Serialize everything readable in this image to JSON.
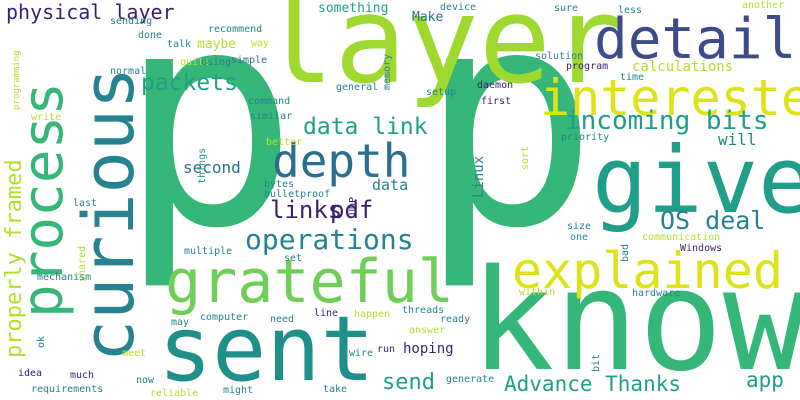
{
  "palette": {
    "navy": "#3b1f6e",
    "blue": "#3e4a89",
    "teal": "#26828e",
    "sea": "#1f9e89",
    "green": "#35b779",
    "lime": "#6ece58",
    "yellowgreen": "#b5de2b",
    "yellow": "#dde318"
  },
  "words": [
    {
      "text": "p"
    },
    {
      "text": "p"
    },
    {
      "text": "layer"
    },
    {
      "text": "know"
    },
    {
      "text": "curious"
    },
    {
      "text": "process"
    },
    {
      "text": "sent"
    },
    {
      "text": "give"
    },
    {
      "text": "detail"
    },
    {
      "text": "interested"
    },
    {
      "text": "grateful"
    },
    {
      "text": "explained"
    },
    {
      "text": "depth"
    },
    {
      "text": "operations"
    },
    {
      "text": "incoming bits"
    },
    {
      "text": "data link"
    },
    {
      "text": "packets"
    },
    {
      "text": "physical layer"
    },
    {
      "text": "properly framed"
    },
    {
      "text": "links"
    },
    {
      "text": "pdf"
    },
    {
      "text": "OS deal"
    },
    {
      "text": "Advance Thanks"
    },
    {
      "text": "send"
    },
    {
      "text": "app"
    },
    {
      "text": "data"
    },
    {
      "text": "second"
    },
    {
      "text": "will"
    },
    {
      "text": "calculations"
    },
    {
      "text": "something"
    },
    {
      "text": "Make"
    },
    {
      "text": "maybe"
    },
    {
      "text": "Linux"
    },
    {
      "text": "hoping"
    },
    {
      "text": "solution"
    },
    {
      "text": "device"
    },
    {
      "text": "sure"
    },
    {
      "text": "less"
    },
    {
      "text": "another"
    },
    {
      "text": "sending"
    },
    {
      "text": "done"
    },
    {
      "text": "talk"
    },
    {
      "text": "recommend"
    },
    {
      "text": "way"
    },
    {
      "text": "quite"
    },
    {
      "text": "simple"
    },
    {
      "text": "program"
    },
    {
      "text": "memory"
    },
    {
      "text": "daemon"
    },
    {
      "text": "setup"
    },
    {
      "text": "first"
    },
    {
      "text": "general"
    },
    {
      "text": "programming"
    },
    {
      "text": "normal"
    },
    {
      "text": "using"
    },
    {
      "text": "command"
    },
    {
      "text": "similar"
    },
    {
      "text": "better"
    },
    {
      "text": "priority"
    },
    {
      "text": "things"
    },
    {
      "text": "write"
    },
    {
      "text": "time"
    },
    {
      "text": "bytes"
    },
    {
      "text": "last"
    },
    {
      "text": "UDP"
    },
    {
      "text": "bulletproof"
    },
    {
      "text": "sort"
    },
    {
      "text": "multiple"
    },
    {
      "text": "shared"
    },
    {
      "text": "set"
    },
    {
      "text": "size"
    },
    {
      "text": "one"
    },
    {
      "text": "communication"
    },
    {
      "text": "Windows"
    },
    {
      "text": "bad"
    },
    {
      "text": "mechanism"
    },
    {
      "text": "within"
    },
    {
      "text": "hardware"
    },
    {
      "text": "computer"
    },
    {
      "text": "need"
    },
    {
      "text": "line"
    },
    {
      "text": "threads"
    },
    {
      "text": "ready"
    },
    {
      "text": "happen"
    },
    {
      "text": "answer"
    },
    {
      "text": "may"
    },
    {
      "text": "ok"
    },
    {
      "text": "meet"
    },
    {
      "text": "run"
    },
    {
      "text": "wire"
    },
    {
      "text": "idea"
    },
    {
      "text": "much"
    },
    {
      "text": "now"
    },
    {
      "text": "generate"
    },
    {
      "text": "bit"
    },
    {
      "text": "requirements"
    },
    {
      "text": "reliable"
    },
    {
      "text": "might"
    },
    {
      "text": "take"
    }
  ]
}
